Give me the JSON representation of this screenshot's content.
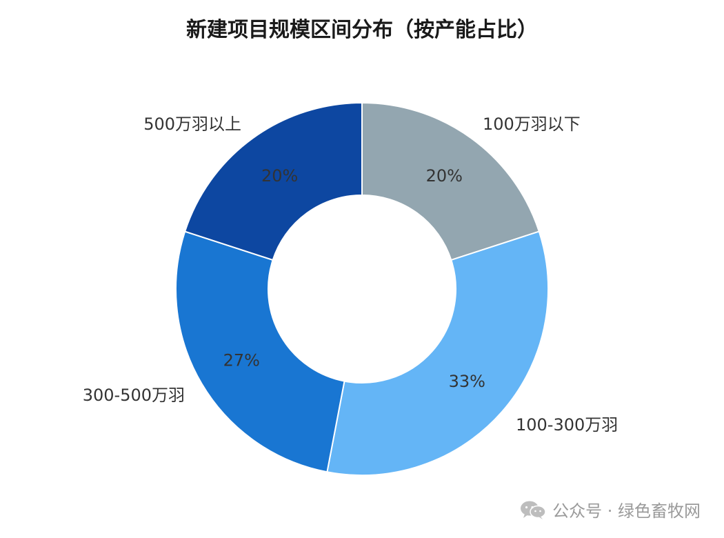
{
  "chart_data": {
    "type": "pie",
    "title": "新建项目规模区间分布（按产能占比）",
    "categories": [
      "100万羽以下",
      "100-300万羽",
      "300-500万羽",
      "500万羽以上"
    ],
    "values": [
      20,
      33,
      27,
      20
    ],
    "value_labels": [
      "20%",
      "33%",
      "27%",
      "20%"
    ],
    "colors": [
      "#93a6b0",
      "#64b5f6",
      "#1976d2",
      "#0d47a1"
    ],
    "legend": "none"
  },
  "watermark": {
    "icon": "wechat-icon",
    "text": "公众号 · 绿色畜牧网"
  }
}
